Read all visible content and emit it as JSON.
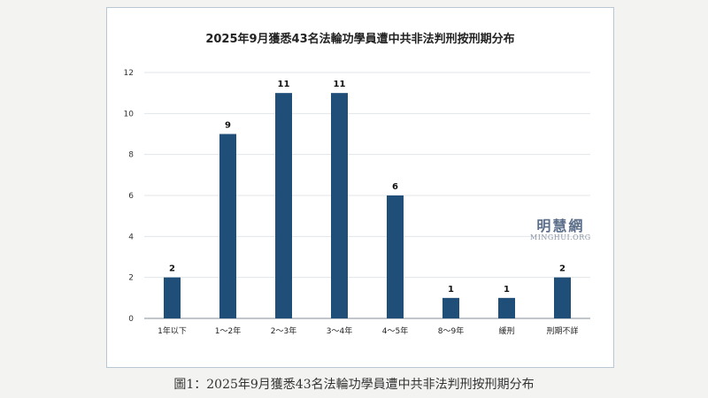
{
  "caption": "圖1：2025年9月獲悉43名法輪功學員遭中共非法判刑按刑期分布",
  "watermark": {
    "name": "明慧網",
    "url": "MINGHUI.ORG"
  },
  "chart_data": {
    "type": "bar",
    "title": "2025年9月獲悉43名法輪功學員遭中共非法判刑按刑期分布",
    "categories": [
      "1年以下",
      "1～2年",
      "2～3年",
      "3～4年",
      "4～5年",
      "8～9年",
      "緩刑",
      "刑期不詳"
    ],
    "values": [
      2,
      9,
      11,
      11,
      6,
      1,
      1,
      2
    ],
    "ylim": [
      0,
      12
    ],
    "yticks": [
      0,
      2,
      4,
      6,
      8,
      10,
      12
    ],
    "grid": true,
    "bar_color": "#1f4e79",
    "xlabel": "",
    "ylabel": ""
  }
}
